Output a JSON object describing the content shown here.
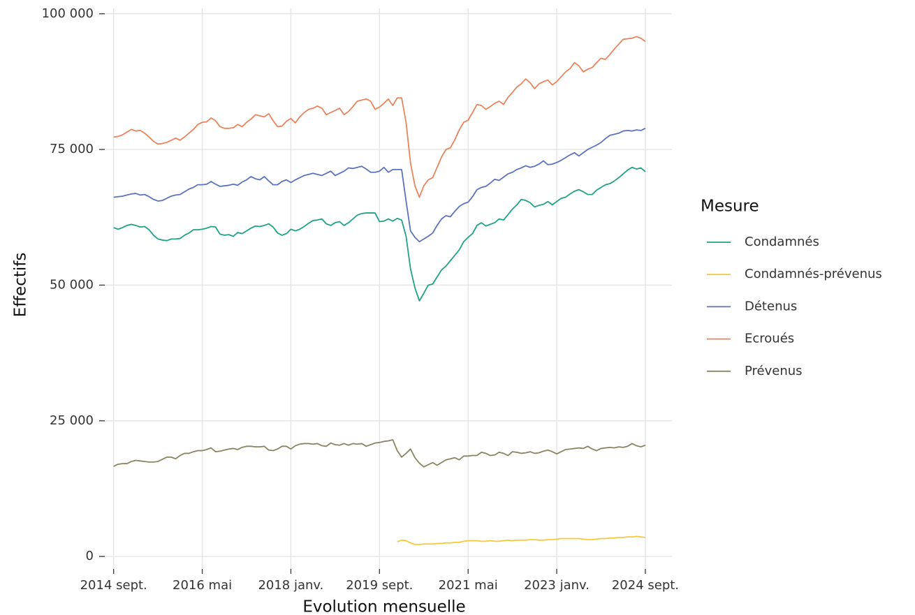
{
  "chart_data": {
    "type": "line",
    "xlabel": "Evolution mensuelle",
    "ylabel": "Effectifs",
    "legend_title": "Mesure",
    "legend": "right",
    "grid": true,
    "x": [
      "2014-09",
      "2014-10",
      "2014-11",
      "2014-12",
      "2015-01",
      "2015-02",
      "2015-03",
      "2015-04",
      "2015-05",
      "2015-06",
      "2015-07",
      "2015-08",
      "2015-09",
      "2015-10",
      "2015-11",
      "2015-12",
      "2016-01",
      "2016-02",
      "2016-03",
      "2016-04",
      "2016-05",
      "2016-06",
      "2016-07",
      "2016-08",
      "2016-09",
      "2016-10",
      "2016-11",
      "2016-12",
      "2017-01",
      "2017-02",
      "2017-03",
      "2017-04",
      "2017-05",
      "2017-06",
      "2017-07",
      "2017-08",
      "2017-09",
      "2017-10",
      "2017-11",
      "2017-12",
      "2018-01",
      "2018-02",
      "2018-03",
      "2018-04",
      "2018-05",
      "2018-06",
      "2018-07",
      "2018-08",
      "2018-09",
      "2018-10",
      "2018-11",
      "2018-12",
      "2019-01",
      "2019-02",
      "2019-03",
      "2019-04",
      "2019-05",
      "2019-06",
      "2019-07",
      "2019-08",
      "2019-09",
      "2019-10",
      "2019-11",
      "2019-12",
      "2020-01",
      "2020-02",
      "2020-03",
      "2020-04",
      "2020-05",
      "2020-06",
      "2020-07",
      "2020-08",
      "2020-09",
      "2020-10",
      "2020-11",
      "2020-12",
      "2021-01",
      "2021-02",
      "2021-03",
      "2021-04",
      "2021-05",
      "2021-06",
      "2021-07",
      "2021-08",
      "2021-09",
      "2021-10",
      "2021-11",
      "2021-12",
      "2022-01",
      "2022-02",
      "2022-03",
      "2022-04",
      "2022-05",
      "2022-06",
      "2022-07",
      "2022-08",
      "2022-09",
      "2022-10",
      "2022-11",
      "2022-12",
      "2023-01",
      "2023-02",
      "2023-03",
      "2023-04",
      "2023-05",
      "2023-06",
      "2023-07",
      "2023-08",
      "2023-09",
      "2023-10",
      "2023-11",
      "2023-12",
      "2024-01",
      "2024-02",
      "2024-03",
      "2024-04",
      "2024-05",
      "2024-06",
      "2024-07",
      "2024-08",
      "2024-09"
    ],
    "xlim": [
      "2014-07",
      "2025-03"
    ],
    "xticks": [
      {
        "value": "2014-09",
        "label": "2014 sept."
      },
      {
        "value": "2016-05",
        "label": "2016 mai"
      },
      {
        "value": "2018-01",
        "label": "2018 janv."
      },
      {
        "value": "2019-09",
        "label": "2019 sept."
      },
      {
        "value": "2021-05",
        "label": "2021 mai"
      },
      {
        "value": "2023-01",
        "label": "2023 janv."
      },
      {
        "value": "2024-09",
        "label": "2024 sept."
      }
    ],
    "ylim": [
      -2300,
      101000
    ],
    "yticks": [
      0,
      {
        "value": 25000,
        "label": "25 000"
      },
      {
        "value": 50000,
        "label": "50 000"
      },
      {
        "value": 75000,
        "label": "75 000"
      },
      {
        "value": 100000,
        "label": "100 000"
      }
    ],
    "series": [
      {
        "name": "Condamnés",
        "color": "#1fa386",
        "values": [
          60600,
          60300,
          60600,
          61000,
          61200,
          61000,
          60700,
          60800,
          60200,
          59200,
          58500,
          58300,
          58200,
          58500,
          58500,
          58600,
          59200,
          59600,
          60200,
          60200,
          60300,
          60500,
          60800,
          60700,
          59400,
          59200,
          59300,
          59000,
          59700,
          59500,
          60000,
          60500,
          60900,
          60800,
          61000,
          61300,
          60700,
          59600,
          59200,
          59500,
          60300,
          60000,
          60300,
          60800,
          61400,
          61900,
          62000,
          62200,
          61300,
          61000,
          61500,
          61700,
          61000,
          61500,
          62200,
          62900,
          63200,
          63300,
          63300,
          63300,
          61700,
          61800,
          62200,
          61800,
          62300,
          62000,
          59000,
          53000,
          49500,
          47100,
          48500,
          50000,
          50200,
          51500,
          52800,
          53500,
          54500,
          55500,
          56500,
          58000,
          58800,
          59500,
          61000,
          61500,
          60900,
          61200,
          61500,
          62200,
          62000,
          63000,
          64000,
          64800,
          65800,
          65600,
          65200,
          64400,
          64700,
          64900,
          65400,
          64800,
          65400,
          66000,
          66200,
          66800,
          67300,
          67600,
          67200,
          66700,
          66700,
          67500,
          68000,
          68500,
          68700,
          69200,
          69800,
          70500,
          71200,
          71700,
          71400,
          71600,
          70900
        ]
      },
      {
        "name": "Condamnés-prévenus",
        "color": "#f7c93a",
        "values": [
          null,
          null,
          null,
          null,
          null,
          null,
          null,
          null,
          null,
          null,
          null,
          null,
          null,
          null,
          null,
          null,
          null,
          null,
          null,
          null,
          null,
          null,
          null,
          null,
          null,
          null,
          null,
          null,
          null,
          null,
          null,
          null,
          null,
          null,
          null,
          null,
          null,
          null,
          null,
          null,
          null,
          null,
          null,
          null,
          null,
          null,
          null,
          null,
          null,
          null,
          null,
          null,
          null,
          null,
          null,
          null,
          null,
          null,
          null,
          null,
          null,
          null,
          null,
          null,
          2700,
          3000,
          2900,
          2500,
          2200,
          2200,
          2300,
          2300,
          2300,
          2400,
          2400,
          2500,
          2500,
          2600,
          2600,
          2800,
          2900,
          2900,
          2900,
          2800,
          2800,
          2900,
          2800,
          2800,
          2900,
          3000,
          2900,
          3000,
          3000,
          3000,
          3100,
          3100,
          3000,
          3000,
          3100,
          3100,
          3200,
          3300,
          3300,
          3300,
          3300,
          3300,
          3200,
          3100,
          3100,
          3200,
          3300,
          3300,
          3400,
          3400,
          3500,
          3500,
          3600,
          3600,
          3700,
          3600,
          3500
        ]
      },
      {
        "name": "Détenus",
        "color": "#5b72bd",
        "values": [
          66200,
          66300,
          66400,
          66600,
          66800,
          66900,
          66600,
          66700,
          66300,
          65800,
          65500,
          65600,
          66000,
          66400,
          66600,
          66700,
          67200,
          67700,
          68000,
          68500,
          68500,
          68600,
          69100,
          68600,
          68200,
          68300,
          68400,
          68600,
          68400,
          69000,
          69400,
          70000,
          69600,
          69400,
          70000,
          69200,
          68500,
          68500,
          69100,
          69400,
          68900,
          69400,
          69800,
          70200,
          70400,
          70600,
          70400,
          70200,
          70600,
          71000,
          70200,
          70600,
          71000,
          71600,
          71500,
          71700,
          71900,
          71400,
          70800,
          70800,
          71000,
          71700,
          70800,
          71300,
          71300,
          71300,
          65500,
          60000,
          58800,
          58000,
          58500,
          59000,
          59600,
          61000,
          62200,
          62800,
          62600,
          63600,
          64500,
          65000,
          65300,
          66300,
          67600,
          68000,
          68200,
          68800,
          69500,
          69300,
          69900,
          70500,
          70800,
          71300,
          71600,
          72000,
          71700,
          71900,
          72300,
          72900,
          72200,
          72300,
          72600,
          73000,
          73500,
          74000,
          74400,
          73800,
          74400,
          75000,
          75400,
          75800,
          76300,
          77000,
          77600,
          77800,
          78000,
          78400,
          78500,
          78400,
          78600,
          78500,
          78900
        ]
      },
      {
        "name": "Ecroués",
        "color": "#e8845c",
        "values": [
          77300,
          77400,
          77700,
          78200,
          78700,
          78400,
          78500,
          78000,
          77300,
          76500,
          76000,
          76100,
          76300,
          76700,
          77100,
          76700,
          77300,
          78000,
          78700,
          79600,
          80000,
          80100,
          80800,
          80300,
          79200,
          78900,
          78900,
          79000,
          79600,
          79200,
          80000,
          80600,
          81400,
          81200,
          81000,
          81600,
          80300,
          79200,
          79300,
          80200,
          80700,
          79900,
          81000,
          81800,
          82400,
          82600,
          83000,
          82600,
          81400,
          81800,
          82200,
          82600,
          81400,
          82000,
          82900,
          83900,
          84100,
          84300,
          83900,
          82400,
          82800,
          83500,
          84300,
          83100,
          84500,
          84500,
          80000,
          72500,
          68300,
          66200,
          68300,
          69400,
          69800,
          71700,
          73600,
          75000,
          75300,
          76800,
          78600,
          80000,
          80400,
          81800,
          83300,
          83100,
          82400,
          82900,
          83500,
          83900,
          83300,
          84600,
          85500,
          86500,
          87100,
          88000,
          87300,
          86200,
          87100,
          87500,
          87800,
          86900,
          87500,
          88400,
          89300,
          89900,
          91000,
          90400,
          89300,
          89800,
          90100,
          91000,
          91800,
          91600,
          92500,
          93500,
          94400,
          95300,
          95400,
          95500,
          95800,
          95500,
          94900
        ]
      },
      {
        "name": "Prévenus",
        "color": "#8a8462",
        "values": [
          16600,
          17000,
          17100,
          17100,
          17500,
          17700,
          17600,
          17500,
          17400,
          17400,
          17500,
          17900,
          18300,
          18300,
          18000,
          18600,
          19000,
          19000,
          19300,
          19500,
          19500,
          19700,
          20000,
          19300,
          19400,
          19600,
          19800,
          19900,
          19700,
          20100,
          20300,
          20300,
          20200,
          20200,
          20300,
          19600,
          19500,
          19800,
          20300,
          20300,
          19800,
          20400,
          20700,
          20800,
          20800,
          20700,
          20800,
          20400,
          20300,
          20900,
          20600,
          20500,
          20800,
          20500,
          20800,
          20700,
          20800,
          20300,
          20600,
          20900,
          21000,
          21200,
          21300,
          21500,
          19500,
          18300,
          19000,
          19800,
          18200,
          17200,
          16500,
          16900,
          17300,
          16800,
          17300,
          17800,
          18000,
          18200,
          17800,
          18500,
          18500,
          18600,
          18600,
          19200,
          19000,
          18600,
          18700,
          19200,
          19000,
          18600,
          19300,
          19200,
          19000,
          19100,
          19300,
          19000,
          19100,
          19400,
          19600,
          19300,
          18900,
          19300,
          19700,
          19800,
          19900,
          20000,
          19900,
          20300,
          19800,
          19500,
          19900,
          20000,
          20100,
          20000,
          20200,
          20100,
          20300,
          20800,
          20400,
          20200,
          20500
        ]
      }
    ]
  }
}
